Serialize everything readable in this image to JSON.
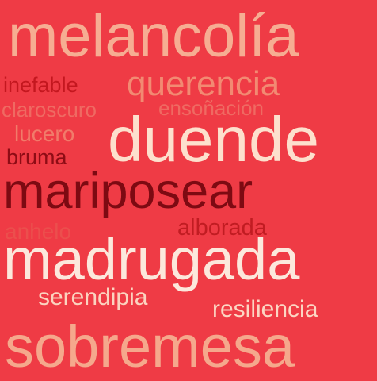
{
  "background_color": "#ef3b45",
  "words": [
    {
      "text": "melancolía",
      "color": "#f6ad92"
    },
    {
      "text": "querencia",
      "color": "#f28a72"
    },
    {
      "text": "inefable",
      "color": "#c4171f"
    },
    {
      "text": "claroscuro",
      "color": "#ef6a62"
    },
    {
      "text": "ensoñación",
      "color": "#ef6a62"
    },
    {
      "text": "lucero",
      "color": "#f17b6a"
    },
    {
      "text": "duende",
      "color": "#fde0cd"
    },
    {
      "text": "bruma",
      "color": "#8e0c15"
    },
    {
      "text": "mariposear",
      "color": "#7d0a12"
    },
    {
      "text": "anhelo",
      "color": "#eb4f4d"
    },
    {
      "text": "alborada",
      "color": "#c11c22"
    },
    {
      "text": "madrugada",
      "color": "#fce8dc"
    },
    {
      "text": "serendipia",
      "color": "#fbd3bf"
    },
    {
      "text": "resiliencia",
      "color": "#fcd6c3"
    },
    {
      "text": "sobremesa",
      "color": "#f5a88c"
    }
  ]
}
